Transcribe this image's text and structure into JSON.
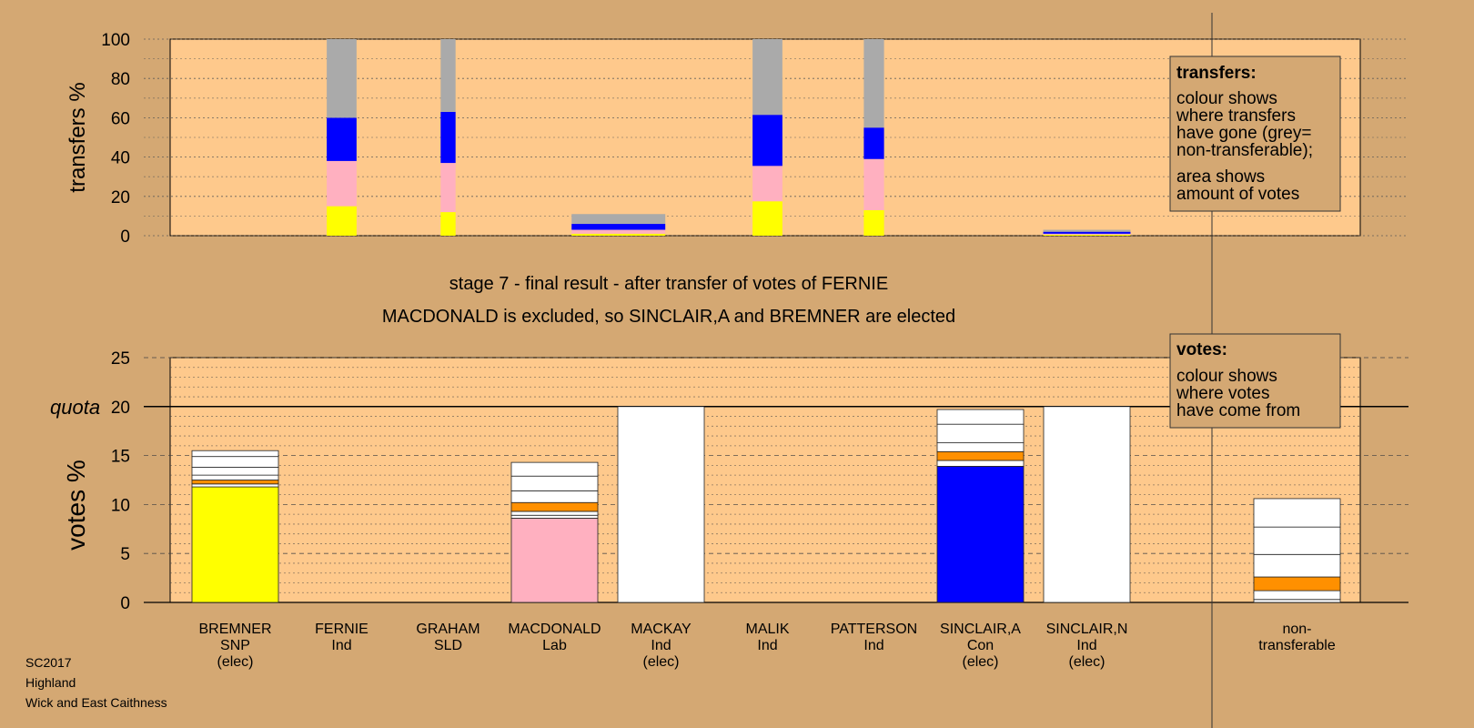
{
  "colors": {
    "background": "#d4a873",
    "plot_bg": "#fec98c",
    "SNP": "#ffff00",
    "Lab": "#ffb0c0",
    "Con": "#0000ff",
    "other": "#ff9000",
    "neutral": "#ffffff",
    "nontransferable": "#aaaaaa"
  },
  "chart_data": [
    {
      "type": "bar",
      "stacked": true,
      "ylabel": "transfers %",
      "ylim": [
        0,
        100
      ],
      "yticks": [
        "0",
        "20",
        "40",
        "60",
        "80",
        "100"
      ],
      "grid": true,
      "legend": {
        "title": "transfers:",
        "lines_a": [
          "colour shows",
          "where transfers",
          "have gone (grey=",
          "non-transferable);"
        ],
        "lines_b": [
          "area shows",
          "amount of votes"
        ],
        "placement": "top-right"
      },
      "bars": [
        {
          "position": 1.5,
          "width": 0.28,
          "segments": [
            {
              "color": "SNP",
              "value": 15
            },
            {
              "color": "Lab",
              "value": 23
            },
            {
              "color": "Con",
              "value": 22
            },
            {
              "color": "nontransferable",
              "value": 40
            }
          ]
        },
        {
          "position": 2.5,
          "width": 0.14,
          "segments": [
            {
              "color": "SNP",
              "value": 12
            },
            {
              "color": "Lab",
              "value": 25
            },
            {
              "color": "Con",
              "value": 26
            },
            {
              "color": "nontransferable",
              "value": 37
            }
          ]
        },
        {
          "position": 4.1,
          "width": 0.88,
          "segments": [
            {
              "color": "SNP",
              "value": 1
            },
            {
              "color": "Lab",
              "value": 2
            },
            {
              "color": "Con",
              "value": 3
            },
            {
              "color": "nontransferable",
              "value": 5
            }
          ]
        },
        {
          "position": 5.5,
          "width": 0.28,
          "segments": [
            {
              "color": "SNP",
              "value": 17.5
            },
            {
              "color": "Lab",
              "value": 18
            },
            {
              "color": "Con",
              "value": 26
            },
            {
              "color": "nontransferable",
              "value": 38.5
            }
          ]
        },
        {
          "position": 6.5,
          "width": 0.19,
          "segments": [
            {
              "color": "SNP",
              "value": 13
            },
            {
              "color": "Lab",
              "value": 26
            },
            {
              "color": "Con",
              "value": 16
            },
            {
              "color": "nontransferable",
              "value": 45
            }
          ]
        },
        {
          "position": 8.5,
          "width": 0.82,
          "segments": [
            {
              "color": "SNP",
              "value": 0.5
            },
            {
              "color": "Lab",
              "value": 0.5
            },
            {
              "color": "Con",
              "value": 1.0
            },
            {
              "color": "nontransferable",
              "value": 1.0
            }
          ]
        }
      ]
    },
    {
      "type": "bar",
      "stacked": true,
      "ylabel": "votes %",
      "ylim": [
        0,
        25
      ],
      "yticks": [
        "0",
        "5",
        "10",
        "15",
        "20",
        "25"
      ],
      "quota": 20,
      "quota_label": "quota",
      "grid": true,
      "legend": {
        "title": "votes:",
        "lines": [
          "colour shows",
          "where votes",
          "have come from"
        ],
        "placement": "top-right"
      },
      "categories": [
        {
          "lines": [
            "BREMNER",
            "SNP",
            "(elec)"
          ]
        },
        {
          "lines": [
            "FERNIE",
            "Ind"
          ]
        },
        {
          "lines": [
            "GRAHAM",
            "SLD"
          ]
        },
        {
          "lines": [
            "MACDONALD",
            "Lab"
          ]
        },
        {
          "lines": [
            "MACKAY",
            "Ind",
            "(elec)"
          ]
        },
        {
          "lines": [
            "MALIK",
            "Ind"
          ]
        },
        {
          "lines": [
            "PATTERSON",
            "Ind"
          ]
        },
        {
          "lines": [
            "SINCLAIR,A",
            "Con",
            "(elec)"
          ]
        },
        {
          "lines": [
            "SINCLAIR,N",
            "Ind",
            "(elec)"
          ]
        },
        {
          "lines": [
            "non-",
            "transferable"
          ]
        }
      ],
      "bars": [
        {
          "category": 0,
          "segments": [
            {
              "color": "SNP",
              "value": 11.8
            },
            {
              "color": "neutral",
              "value": 0.3
            },
            {
              "color": "other",
              "value": 0.4
            },
            {
              "color": "neutral",
              "value": 0.5
            },
            {
              "color": "neutral",
              "value": 0.8
            },
            {
              "color": "neutral",
              "value": 1.1
            },
            {
              "color": "neutral",
              "value": 0.6
            }
          ]
        },
        {
          "category": 3,
          "segments": [
            {
              "color": "Lab",
              "value": 8.6
            },
            {
              "color": "neutral",
              "value": 0.3
            },
            {
              "color": "neutral",
              "value": 0.4
            },
            {
              "color": "other",
              "value": 0.9
            },
            {
              "color": "neutral",
              "value": 1.2
            },
            {
              "color": "neutral",
              "value": 1.5
            },
            {
              "color": "neutral",
              "value": 1.4
            }
          ]
        },
        {
          "category": 4,
          "segments": [
            {
              "color": "neutral",
              "value": 20
            }
          ]
        },
        {
          "category": 7,
          "segments": [
            {
              "color": "Con",
              "value": 13.9
            },
            {
              "color": "neutral",
              "value": 0.6
            },
            {
              "color": "other",
              "value": 0.9
            },
            {
              "color": "neutral",
              "value": 0.9
            },
            {
              "color": "neutral",
              "value": 1.9
            },
            {
              "color": "neutral",
              "value": 1.5
            }
          ]
        },
        {
          "category": 8,
          "segments": [
            {
              "color": "neutral",
              "value": 20
            }
          ]
        },
        {
          "category": 9,
          "segments": [
            {
              "color": "neutral",
              "value": 0.3
            },
            {
              "color": "neutral",
              "value": 0.9
            },
            {
              "color": "other",
              "value": 1.4
            },
            {
              "color": "neutral",
              "value": 2.3
            },
            {
              "color": "neutral",
              "value": 2.8
            },
            {
              "color": "neutral",
              "value": 2.9
            }
          ]
        }
      ]
    }
  ],
  "stage_title": "stage 7 - final result - after transfer of votes of FERNIE",
  "stage_subtitle": "MACDONALD is excluded, so SINCLAIR,A and BREMNER are elected",
  "footer": [
    "SC2017",
    "Highland",
    "Wick and East Caithness"
  ]
}
